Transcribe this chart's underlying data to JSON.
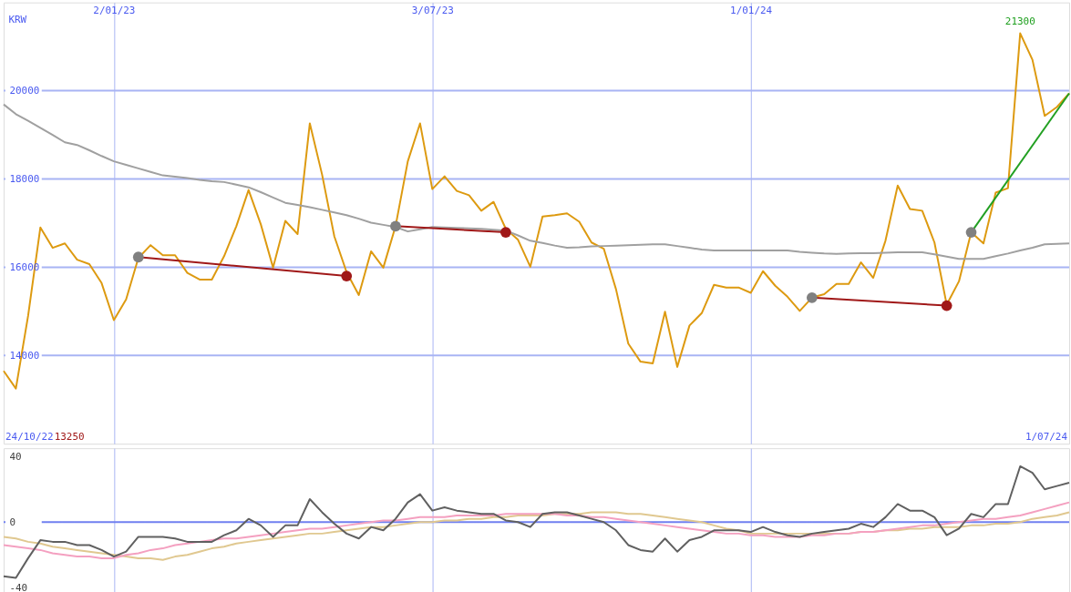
{
  "chart_data": [
    {
      "type": "line",
      "ylabel": "KRW",
      "x": [
        "2022-10-31",
        "2022-11-07",
        "2022-11-14",
        "2022-11-21",
        "2022-11-28",
        "2022-12-05",
        "2022-12-12",
        "2022-12-19",
        "2022-12-26",
        "2023-01-02",
        "2023-01-09",
        "2023-01-16",
        "2023-01-23",
        "2023-01-30",
        "2023-02-06",
        "2023-02-13",
        "2023-02-20",
        "2023-02-27",
        "2023-03-06",
        "2023-03-13",
        "2023-03-20",
        "2023-03-27",
        "2023-04-03",
        "2023-04-10",
        "2023-04-17",
        "2023-04-24",
        "2023-05-01",
        "2023-05-08",
        "2023-05-15",
        "2023-05-22",
        "2023-05-29",
        "2023-06-05",
        "2023-06-12",
        "2023-06-19",
        "2023-06-26",
        "2023-07-03",
        "2023-07-10",
        "2023-07-17",
        "2023-07-24",
        "2023-07-31",
        "2023-08-07",
        "2023-08-14",
        "2023-08-21",
        "2023-08-28",
        "2023-09-04",
        "2023-09-11",
        "2023-09-18",
        "2023-09-25",
        "2023-10-02",
        "2023-10-09",
        "2023-10-16",
        "2023-10-23",
        "2023-10-30",
        "2023-11-06",
        "2023-11-13",
        "2023-11-20",
        "2023-11-27",
        "2023-12-04",
        "2023-12-11",
        "2023-12-18",
        "2023-12-25",
        "2024-01-01",
        "2024-01-08",
        "2024-01-15",
        "2024-01-22",
        "2024-01-29",
        "2024-02-05",
        "2024-02-12",
        "2024-02-19",
        "2024-02-26",
        "2024-03-04",
        "2024-03-11",
        "2024-03-18",
        "2024-03-25",
        "2024-04-01",
        "2024-04-08",
        "2024-04-15",
        "2024-04-22",
        "2024-04-29",
        "2024-05-06",
        "2024-05-13",
        "2024-05-20",
        "2024-05-27",
        "2024-06-03",
        "2024-06-10",
        "2024-06-17",
        "2024-06-24",
        "2024-07-01"
      ],
      "series": [
        {
          "color": "#dd9a10",
          "values": [
            13650,
            13250,
            14900,
            16900,
            16440,
            16540,
            16170,
            16070,
            15640,
            14800,
            15270,
            16210,
            16500,
            16270,
            16270,
            15870,
            15720,
            15720,
            16250,
            16930,
            17750,
            16970,
            15990,
            17050,
            16750,
            19260,
            18100,
            16700,
            15890,
            15370,
            16360,
            15990,
            16930,
            18400,
            19260,
            17770,
            18060,
            17730,
            17630,
            17280,
            17480,
            16870,
            16620,
            16010,
            17150,
            17180,
            17220,
            17030,
            16560,
            16420,
            15500,
            14270,
            13860,
            13820,
            14990,
            13740,
            14680,
            14960,
            15600,
            15540,
            15540,
            15420,
            15910,
            15580,
            15330,
            15010,
            15310,
            15390,
            15620,
            15620,
            16110,
            15760,
            16600,
            17850,
            17320,
            17280,
            16560,
            15150,
            15680,
            16790,
            16540,
            17690,
            17790,
            21300,
            20700,
            19430,
            19630,
            19940
          ]
        },
        {
          "color": "#a0a0a0",
          "values": [
            19690,
            19470,
            19320,
            19160,
            19000,
            18830,
            18770,
            18650,
            18520,
            18400,
            18320,
            18240,
            18160,
            18080,
            18050,
            18020,
            17980,
            17950,
            17930,
            17870,
            17810,
            17700,
            17580,
            17460,
            17410,
            17360,
            17300,
            17240,
            17180,
            17100,
            17010,
            16960,
            16910,
            16810,
            16860,
            16910,
            16900,
            16890,
            16880,
            16870,
            16850,
            16830,
            16720,
            16600,
            16550,
            16490,
            16440,
            16450,
            16470,
            16480,
            16490,
            16500,
            16510,
            16520,
            16520,
            16480,
            16440,
            16400,
            16380,
            16380,
            16380,
            16380,
            16380,
            16380,
            16380,
            16350,
            16330,
            16310,
            16300,
            16310,
            16320,
            16320,
            16330,
            16340,
            16340,
            16340,
            16290,
            16240,
            16190,
            16190,
            16190,
            16250,
            16310,
            16380,
            16440,
            16520,
            16530,
            16540
          ]
        },
        {
          "type": "line",
          "color": "#a01818",
          "x": [
            "2023-01-16",
            "2023-05-15"
          ],
          "values": [
            16230,
            15800
          ]
        },
        {
          "type": "line",
          "color": "#a01818",
          "x": [
            "2023-06-12",
            "2023-08-14"
          ],
          "values": [
            16930,
            16790
          ]
        },
        {
          "type": "line",
          "color": "#a01818",
          "x": [
            "2024-02-05",
            "2024-04-22"
          ],
          "values": [
            15310,
            15130
          ]
        },
        {
          "type": "line",
          "color": "#22a022",
          "x": [
            "2024-05-06",
            "2024-07-01"
          ],
          "values": [
            16790,
            19940
          ]
        },
        {
          "type": "scatter",
          "marker": "circle",
          "x": [
            "2023-01-16",
            "2023-05-15",
            "2023-06-12",
            "2023-08-14",
            "2024-02-05",
            "2024-04-22",
            "2024-05-06"
          ],
          "values": [
            16230,
            15800,
            16930,
            16790,
            15310,
            15130,
            16790
          ],
          "colors": [
            "#808080",
            "#a01818",
            "#808080",
            "#a01818",
            "#808080",
            "#a01818",
            "#808080"
          ]
        }
      ],
      "xlim": [
        "2022-10-31",
        "2024-07-01"
      ],
      "xticks": [
        {
          "value": "2023-01-02",
          "label": "2/01/23"
        },
        {
          "value": "2023-07-03",
          "label": "3/07/23"
        },
        {
          "value": "2024-01-01",
          "label": "1/01/24"
        }
      ],
      "ylim": [
        12000,
        22000
      ],
      "yticks": [
        14000,
        16000,
        18000,
        20000
      ],
      "grid": true,
      "annotations": [
        "24/10/22",
        "13250",
        {
          "text": "21300",
          "x": "2024-06-03",
          "y": 21300
        },
        "1/07/24"
      ]
    },
    {
      "type": "line",
      "x": [
        "2022-10-31",
        "2022-11-07",
        "2022-11-14",
        "2022-11-21",
        "2022-11-28",
        "2022-12-05",
        "2022-12-12",
        "2022-12-19",
        "2022-12-26",
        "2023-01-02",
        "2023-01-09",
        "2023-01-16",
        "2023-01-23",
        "2023-01-30",
        "2023-02-06",
        "2023-02-13",
        "2023-02-20",
        "2023-02-27",
        "2023-03-06",
        "2023-03-13",
        "2023-03-20",
        "2023-03-27",
        "2023-04-03",
        "2023-04-10",
        "2023-04-17",
        "2023-04-24",
        "2023-05-01",
        "2023-05-08",
        "2023-05-15",
        "2023-05-22",
        "2023-05-29",
        "2023-06-05",
        "2023-06-12",
        "2023-06-19",
        "2023-06-26",
        "2023-07-03",
        "2023-07-10",
        "2023-07-17",
        "2023-07-24",
        "2023-07-31",
        "2023-08-07",
        "2023-08-14",
        "2023-08-21",
        "2023-08-28",
        "2023-09-04",
        "2023-09-11",
        "2023-09-18",
        "2023-09-25",
        "2023-10-02",
        "2023-10-09",
        "2023-10-16",
        "2023-10-23",
        "2023-10-30",
        "2023-11-06",
        "2023-11-13",
        "2023-11-20",
        "2023-11-27",
        "2023-12-04",
        "2023-12-11",
        "2023-12-18",
        "2023-12-25",
        "2024-01-01",
        "2024-01-08",
        "2024-01-15",
        "2024-01-22",
        "2024-01-29",
        "2024-02-05",
        "2024-02-12",
        "2024-02-19",
        "2024-02-26",
        "2024-03-04",
        "2024-03-11",
        "2024-03-18",
        "2024-03-25",
        "2024-04-01",
        "2024-04-08",
        "2024-04-15",
        "2024-04-22",
        "2024-04-29",
        "2024-05-06",
        "2024-05-13",
        "2024-05-20",
        "2024-05-27",
        "2024-06-03",
        "2024-06-10",
        "2024-06-17",
        "2024-06-24",
        "2024-07-01"
      ],
      "series": [
        {
          "color": "#e0c890",
          "values": [
            -9,
            -10,
            -12,
            -13,
            -15,
            -16,
            -17,
            -18,
            -19,
            -20,
            -21,
            -22,
            -22,
            -23,
            -21,
            -20,
            -18,
            -16,
            -15,
            -13,
            -12,
            -11,
            -10,
            -9,
            -8,
            -7,
            -7,
            -6,
            -5,
            -4,
            -3,
            -3,
            -2,
            -1,
            0,
            0,
            1,
            1,
            2,
            2,
            3,
            3,
            4,
            4,
            4,
            5,
            5,
            5,
            6,
            6,
            6,
            5,
            5,
            4,
            3,
            2,
            1,
            0,
            -2,
            -4,
            -5,
            -7,
            -7,
            -7,
            -7,
            -7,
            -7,
            -7,
            -7,
            -7,
            -6,
            -6,
            -5,
            -5,
            -4,
            -4,
            -3,
            -3,
            -3,
            -2,
            -2,
            -1,
            -1,
            0,
            2,
            3,
            4,
            6
          ]
        },
        {
          "color": "#f4a0c0",
          "values": [
            -14,
            -15,
            -16,
            -17,
            -19,
            -20,
            -21,
            -21,
            -22,
            -22,
            -20,
            -19,
            -17,
            -16,
            -14,
            -13,
            -12,
            -11,
            -10,
            -10,
            -9,
            -8,
            -7,
            -6,
            -5,
            -4,
            -4,
            -3,
            -2,
            -1,
            0,
            1,
            1,
            2,
            3,
            3,
            3,
            4,
            4,
            4,
            4,
            5,
            5,
            5,
            5,
            5,
            4,
            4,
            3,
            3,
            2,
            1,
            0,
            -1,
            -2,
            -3,
            -4,
            -5,
            -6,
            -7,
            -7,
            -8,
            -8,
            -9,
            -9,
            -9,
            -8,
            -8,
            -7,
            -7,
            -6,
            -6,
            -5,
            -4,
            -3,
            -2,
            -2,
            -1,
            0,
            1,
            2,
            2,
            3,
            4,
            6,
            8,
            10,
            12
          ]
        },
        {
          "color": "#606060",
          "values": [
            -33,
            -34,
            -22,
            -11,
            -12,
            -12,
            -14,
            -14,
            -17,
            -21,
            -18,
            -9,
            -9,
            -9,
            -10,
            -12,
            -12,
            -12,
            -8,
            -5,
            2,
            -2,
            -9,
            -2,
            -2,
            14,
            6,
            -1,
            -7,
            -10,
            -3,
            -5,
            2,
            12,
            17,
            7,
            9,
            7,
            6,
            5,
            5,
            1,
            0,
            -3,
            5,
            6,
            6,
            4,
            2,
            0,
            -5,
            -14,
            -17,
            -18,
            -10,
            -18,
            -11,
            -9,
            -5,
            -5,
            -5,
            -6,
            -3,
            -6,
            -8,
            -9,
            -7,
            -6,
            -5,
            -4,
            -1,
            -3,
            3,
            11,
            7,
            7,
            3,
            -8,
            -4,
            5,
            3,
            11,
            11,
            34,
            30,
            20,
            22,
            24
          ]
        }
      ],
      "xlim": [
        "2022-10-31",
        "2024-07-01"
      ],
      "xticks": [
        {
          "value": "2023-01-02",
          "label": null
        },
        {
          "value": "2023-07-03",
          "label": null
        },
        {
          "value": "2024-01-01",
          "label": null
        }
      ],
      "ylim": [
        -45,
        45
      ],
      "yticks": [
        -40,
        0,
        40
      ],
      "grid": "x",
      "tick_labels": "y",
      "ref_lines": [
        {
          "axis": "y",
          "value": 0,
          "color": "#7080f0"
        }
      ]
    }
  ]
}
